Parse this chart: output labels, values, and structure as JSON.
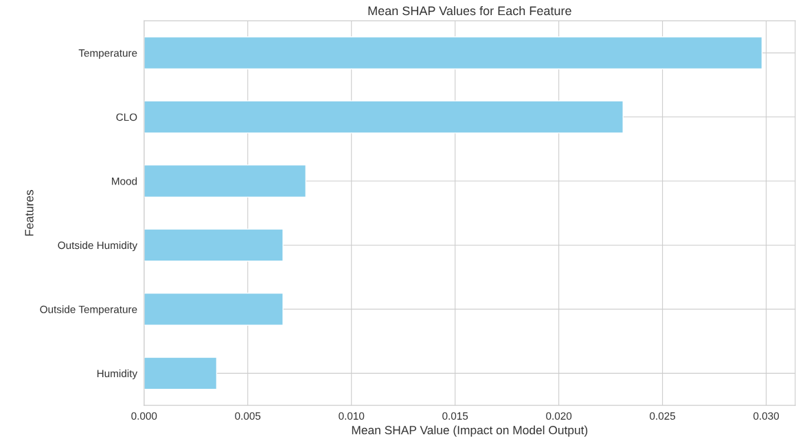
{
  "chart_data": {
    "type": "bar",
    "orientation": "horizontal",
    "title": "Mean SHAP Values for Each Feature",
    "xlabel": "Mean SHAP Value (Impact on Model Output)",
    "ylabel": "Features",
    "categories": [
      "Temperature",
      "CLO",
      "Mood",
      "Outside Humidity",
      "Outside Temperature",
      "Humidity"
    ],
    "values": [
      0.0298,
      0.0231,
      0.0078,
      0.0067,
      0.0067,
      0.0035
    ],
    "color": "#87ceeb",
    "xlim": [
      0,
      0.0314
    ],
    "xticks": [
      {
        "value": 0,
        "label": "0.000"
      },
      {
        "value": 0.005,
        "label": "0.005"
      },
      {
        "value": 0.01,
        "label": "0.010"
      },
      {
        "value": 0.015,
        "label": "0.015"
      },
      {
        "value": 0.02,
        "label": "0.020"
      },
      {
        "value": 0.025,
        "label": "0.025"
      },
      {
        "value": 0.03,
        "label": "0.030"
      }
    ],
    "grid": true,
    "legend": false
  }
}
